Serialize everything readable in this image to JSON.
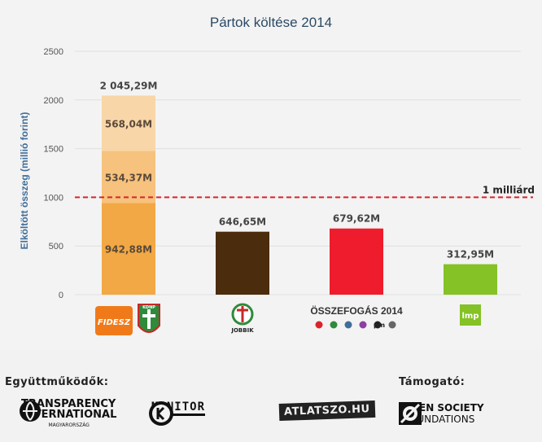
{
  "chart_data": {
    "type": "bar",
    "title": "Pártok költése 2014",
    "ylabel": "Elköltött összeg (millió forint)",
    "ylim": [
      0,
      2500
    ],
    "yticks": [
      0,
      500,
      1000,
      1500,
      2000,
      2500
    ],
    "grid": true,
    "reference_line": {
      "value": 1000,
      "label": "1 milliárd",
      "color": "#d9242b"
    },
    "bars": [
      {
        "party": "Fidesz–KDNP",
        "total": 2045.29,
        "total_label": "2 045,29M",
        "segments": [
          {
            "value": 942.88,
            "label": "942,88M",
            "color": "#f2a844"
          },
          {
            "value": 534.37,
            "label": "534,37M",
            "color": "#f6c27d"
          },
          {
            "value": 568.04,
            "label": "568,04M",
            "color": "#f9d6a8"
          }
        ]
      },
      {
        "party": "Jobbik",
        "total": 646.65,
        "total_label": "646,65M",
        "segments": [
          {
            "value": 646.65,
            "color": "#4b2c0c"
          }
        ]
      },
      {
        "party": "Összefogás 2014",
        "total": 679.62,
        "total_label": "679,62M",
        "segments": [
          {
            "value": 679.62,
            "color": "#ee1c2d"
          }
        ]
      },
      {
        "party": "LMP",
        "total": 312.95,
        "total_label": "312,95M",
        "segments": [
          {
            "value": 312.95,
            "color": "#84c225"
          }
        ]
      }
    ],
    "logos": [
      "FIDESZ",
      "KDNP",
      "JOBBIK",
      "ÖSSZEFOGÁS 2014",
      "lmp"
    ],
    "osszefogas_small": "pm"
  },
  "footer": {
    "partners_label": "Együttműködők:",
    "sponsor_label": "Támogató:",
    "ti_line1": "TRANSPARENCY",
    "ti_line2": "INTERNATIONAL",
    "ti_line3": "MAGYARORSZÁG",
    "kmonitor": "MONITOR",
    "atlatszo": "ATLATSZO.HU",
    "osf_line1": "OPEN SOCIETY",
    "osf_line2": "FOUNDATIONS"
  },
  "colors": {
    "axis_text": "#555555",
    "label_text": "#444444",
    "grid": "#e0e0e0"
  }
}
